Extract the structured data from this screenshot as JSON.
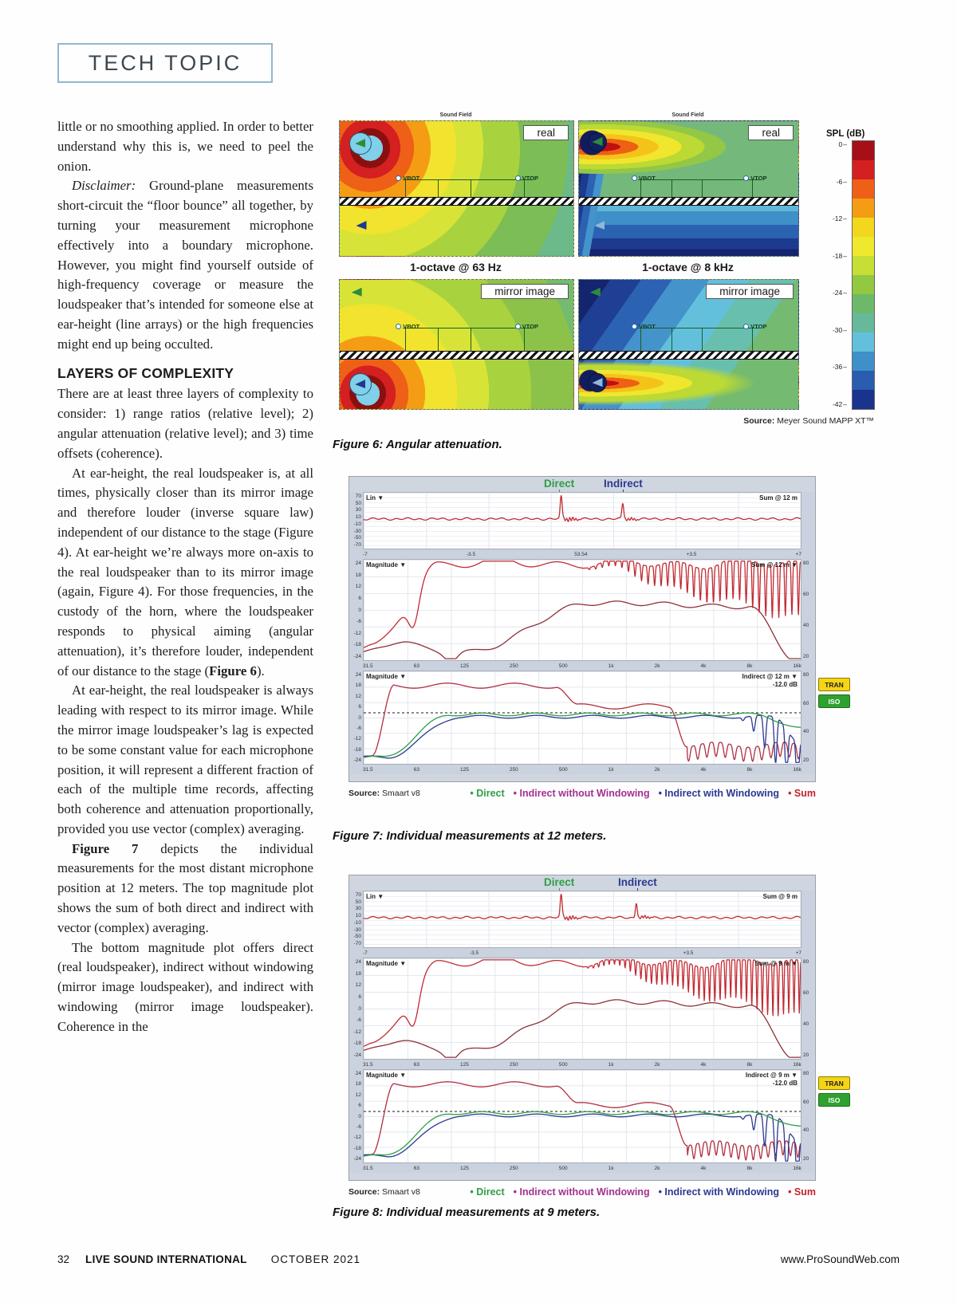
{
  "badge": "TECH TOPIC",
  "article": {
    "p1": "little or no smoothing applied. In order to better understand why this is, we need to peel the onion.",
    "p2_lead": "Disclaimer:",
    "p2_rest": " Ground-plane measurements short-circuit the “floor bounce” all together, by turning your measurement microphone effectively into a boundary microphone. However, you might find yourself outside of high-frequency coverage or measure the loudspeaker that’s intended for someone else at ear-height (line arrays) or the high frequencies might end up being occulted.",
    "heading": "LAYERS OF COMPLEXITY",
    "p3": "There are at least three layers of complexity to consider: 1) range ratios (relative level); 2) angular attenuation (relative level); and 3) time offsets (coherence).",
    "p4_a": "At ear-height, the real loudspeaker is, at all times, physically closer than its mirror image and therefore louder (inverse square law) independent of our distance to the stage (Figure 4). At ear-height we’re always more on-axis to the real loudspeaker than to its mirror image (again, Figure 4). For those frequencies, in the custody of the horn, where the loudspeaker responds to physical aiming (angular attenuation), it’s therefore louder, independent of our distance to the stage (",
    "p4_b": "Figure 6",
    "p4_c": ").",
    "p5": "At ear-height, the real loudspeaker is always leading with respect to its mirror image. While the mirror image loudspeaker’s lag is expected to be some constant value for each microphone position, it will represent a different fraction of each of the multiple time records, affecting both coherence and attenuation proportionally, provided you use vector (complex) averaging.",
    "p6_b": "Figure 7",
    "p6_rest": " depicts the individual measurements for the most distant microphone position at 12 meters. The top magnitude plot shows the sum of both direct and indirect with vector (complex) averaging.",
    "p7": "The bottom magnitude plot offers direct (real loudspeaker), indirect without windowing (mirror image loudspeaker), and indirect with windowing (mirror image loudspeaker). Coherence in the"
  },
  "figure6": {
    "caption": "Figure 6: Angular attenuation.",
    "source_label": "Source:",
    "source_text": " Meyer Sound MAPP XT™",
    "panel_title": "Sound Field",
    "real_label": "real",
    "mirror_label": "mirror image",
    "caption_63": "1-octave @ 63 Hz",
    "caption_8k": "1-octave @ 8 kHz",
    "vbot": "VBOT",
    "vtop": "VTOP",
    "colorbar_title": "SPL (dB)",
    "colorbar_ticks": [
      "0",
      "-6",
      "-12",
      "-18",
      "-24",
      "-30",
      "-36",
      "-42"
    ],
    "colorbar_colors": [
      "#a50f15",
      "#d42020",
      "#ee5f17",
      "#f49d14",
      "#f2d71e",
      "#eee82e",
      "#c6de35",
      "#93c841",
      "#6cb96a",
      "#67b99b",
      "#63c0dc",
      "#3f8fc8",
      "#2a5cb0",
      "#1a338c"
    ]
  },
  "figure7": {
    "caption": "Figure 7: Individual measurements at 12 meters.",
    "source_label": "Source:",
    "source_text": " Smaart v8",
    "direct": "Direct",
    "indirect": "Indirect",
    "ir_mode": "Lin ▼",
    "ir_right": "Sum @ 12 m",
    "ir_xticks": [
      "-7",
      "-3.5",
      "53.54",
      "+3.5",
      "+7"
    ],
    "ir_yticks": [
      "70",
      "50",
      "30",
      "10",
      "-10",
      "-30",
      "-50",
      "-70"
    ],
    "mag_mode": "Magnitude ▼",
    "mag1_right": "Sum @ 12 m ▼",
    "mag2_right": "Indirect @ 12 m ▼",
    "mag2_gain": "-12.0 dB",
    "mag_yticks": [
      "24",
      "18",
      "12",
      "6",
      "0",
      "-6",
      "-12",
      "-18",
      "-24"
    ],
    "mag_right_ticks": [
      "80",
      "60",
      "40",
      "20"
    ],
    "freq_ticks": [
      "31.5",
      "63",
      "125",
      "250",
      "500",
      "1k",
      "2k",
      "4k",
      "8k",
      "16k"
    ],
    "tran": "TRAN",
    "iso": "ISO",
    "legend": [
      {
        "label": "Direct",
        "color": "#2f9e44"
      },
      {
        "label": "Indirect without Windowing",
        "color": "#a2308f"
      },
      {
        "label": "Indirect with Windowing",
        "color": "#2b3990"
      },
      {
        "label": "Sum",
        "color": "#c4242e"
      }
    ]
  },
  "figure8": {
    "caption": "Figure 8: Individual measurements at 9 meters.",
    "source_label": "Source:",
    "source_text": " Smaart v8",
    "direct": "Direct",
    "indirect": "Indirect",
    "ir_mode": "Lin ▼",
    "ir_right": "Sum @ 9 m",
    "ir_xticks": [
      "-7",
      "-3.5",
      "",
      "+3.5",
      "+7"
    ],
    "ir_yticks": [
      "70",
      "50",
      "30",
      "10",
      "-10",
      "-30",
      "-50",
      "-70"
    ],
    "mag_mode": "Magnitude ▼",
    "mag1_right": "Sum @ 9 m ▼",
    "mag2_right": "Indirect @ 9 m ▼",
    "mag2_gain": "-12.0 dB",
    "mag_yticks": [
      "24",
      "18",
      "12",
      "6",
      "0",
      "-6",
      "-12",
      "-18",
      "-24"
    ],
    "mag_right_ticks": [
      "80",
      "60",
      "40",
      "20"
    ],
    "freq_ticks": [
      "31.5",
      "63",
      "125",
      "250",
      "500",
      "1k",
      "2k",
      "4k",
      "8k",
      "16k"
    ],
    "tran": "TRAN",
    "iso": "ISO",
    "legend": [
      {
        "label": "Direct",
        "color": "#2f9e44"
      },
      {
        "label": "Indirect without Windowing",
        "color": "#a2308f"
      },
      {
        "label": "Indirect with Windowing",
        "color": "#2b3990"
      },
      {
        "label": "Sum",
        "color": "#c4242e"
      }
    ]
  },
  "footer": {
    "page_number": "32",
    "magazine": "LIVE SOUND INTERNATIONAL",
    "date": "OCTOBER  2021",
    "website": "www.ProSoundWeb.com"
  }
}
